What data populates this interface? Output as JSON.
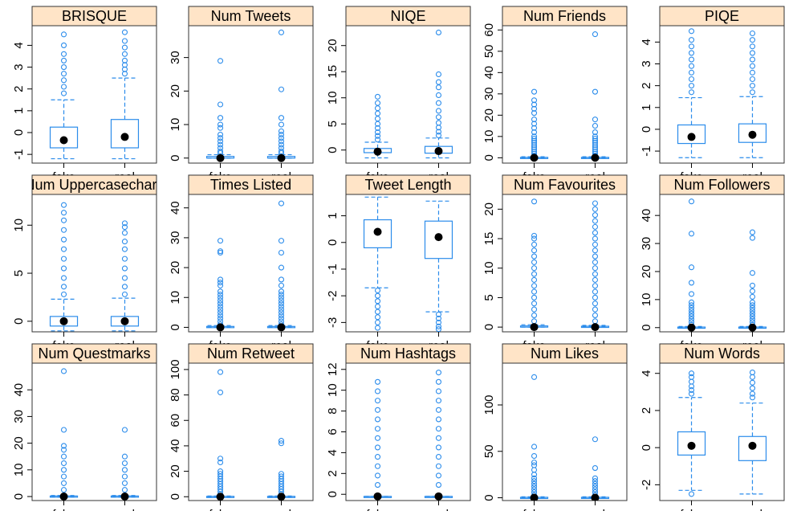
{
  "chart_data": {
    "type": "boxplot",
    "layout": "3x5 trellis",
    "groups": [
      "fake",
      "real"
    ],
    "colors": {
      "box": "#2b8ceb",
      "outlier": "#2b8ceb",
      "median": "#000000",
      "strip": "#ffe4c7",
      "frame": "#333333"
    },
    "panels": [
      {
        "title": "BRISQUE",
        "ylim": [
          -1.4,
          4.9
        ],
        "ticks": [
          -1,
          0,
          1,
          2,
          3,
          4
        ],
        "boxes": [
          {
            "group": "fake",
            "whisker_low": -1.2,
            "q1": -0.7,
            "median": -0.35,
            "q3": 0.25,
            "whisker_high": 1.5,
            "outliers": [
              1.8,
              2.1,
              2.4,
              2.7,
              3.0,
              3.3,
              3.6,
              4.0,
              4.5
            ]
          },
          {
            "group": "real",
            "whisker_low": -1.2,
            "q1": -0.7,
            "median": -0.2,
            "q3": 0.6,
            "whisker_high": 2.5,
            "outliers": [
              2.7,
              2.9,
              3.1,
              3.3,
              3.6,
              3.9,
              4.2,
              4.6
            ]
          }
        ]
      },
      {
        "title": "Num Tweets",
        "ylim": [
          -1.5,
          39.5
        ],
        "ticks": [
          0,
          10,
          20,
          30
        ],
        "boxes": [
          {
            "group": "fake",
            "whisker_low": 0,
            "q1": 0,
            "median": 0,
            "q3": 0.5,
            "whisker_high": 1,
            "outliers": [
              1.5,
              2,
              3,
              4,
              5,
              6,
              7,
              9,
              10,
              12,
              16,
              29
            ]
          },
          {
            "group": "real",
            "whisker_low": 0,
            "q1": 0,
            "median": 0,
            "q3": 0.5,
            "whisker_high": 1,
            "outliers": [
              1.5,
              2,
              3,
              4,
              5,
              6,
              7,
              8,
              10,
              12,
              20.5,
              37.5
            ]
          }
        ]
      },
      {
        "title": "NIQE",
        "ylim": [
          -2.5,
          23.8
        ],
        "ticks": [
          0,
          5,
          10,
          15,
          20
        ],
        "boxes": [
          {
            "group": "fake",
            "whisker_low": -1.5,
            "q1": -0.5,
            "median": -0.3,
            "q3": 0.3,
            "whisker_high": 1.5,
            "outliers": [
              2,
              2.7,
              3.4,
              4.2,
              5,
              6,
              7,
              8,
              9,
              10.2
            ]
          },
          {
            "group": "real",
            "whisker_low": -1.5,
            "q1": -0.6,
            "median": -0.2,
            "q3": 0.7,
            "whisker_high": 2.3,
            "outliers": [
              2.8,
              3.5,
              4.3,
              5.2,
              6.3,
              7.5,
              9,
              10.5,
              12,
              13,
              14.5,
              22.5
            ]
          }
        ]
      },
      {
        "title": "Num Friends",
        "ylim": [
          -2.5,
          62
        ],
        "ticks": [
          0,
          10,
          20,
          30,
          40,
          50,
          60
        ],
        "boxes": [
          {
            "group": "fake",
            "whisker_low": 0,
            "q1": 0,
            "median": 0,
            "q3": 0.2,
            "whisker_high": 0.5,
            "outliers": [
              1,
              2,
              3,
              4,
              5,
              6,
              7,
              8,
              9,
              10,
              12,
              14,
              16,
              18,
              21,
              23,
              25,
              27,
              31
            ]
          },
          {
            "group": "real",
            "whisker_low": 0,
            "q1": 0,
            "median": 0,
            "q3": 0.2,
            "whisker_high": 0.5,
            "outliers": [
              1,
              2,
              3,
              4,
              5,
              6,
              7,
              8,
              9,
              10,
              12,
              15,
              18,
              31,
              58
            ]
          }
        ]
      },
      {
        "title": "PIQE",
        "ylim": [
          -1.55,
          4.75
        ],
        "ticks": [
          -1,
          0,
          1,
          2,
          3,
          4
        ],
        "boxes": [
          {
            "group": "fake",
            "whisker_low": -1.3,
            "q1": -0.65,
            "median": -0.35,
            "q3": 0.2,
            "whisker_high": 1.45,
            "outliers": [
              1.7,
              2.0,
              2.3,
              2.6,
              2.9,
              3.2,
              3.5,
              3.8,
              4.1,
              4.5
            ]
          },
          {
            "group": "real",
            "whisker_low": -1.3,
            "q1": -0.6,
            "median": -0.25,
            "q3": 0.25,
            "whisker_high": 1.5,
            "outliers": [
              1.7,
              2.0,
              2.3,
              2.6,
              2.9,
              3.2,
              3.5,
              3.8,
              4.1,
              4.4
            ]
          }
        ]
      },
      {
        "title": "Num Uppercasechars",
        "ylim": [
          -1.1,
          13.2
        ],
        "ticks": [
          0,
          5,
          10
        ],
        "boxes": [
          {
            "group": "fake",
            "whisker_low": -1,
            "q1": -0.5,
            "median": 0,
            "q3": 0.5,
            "whisker_high": 2.3,
            "outliers": [
              2.8,
              3.6,
              4.5,
              5.5,
              6.5,
              7.5,
              8.5,
              9.5,
              10.5,
              11.3,
              12.1
            ]
          },
          {
            "group": "real",
            "whisker_low": -1,
            "q1": -0.5,
            "median": 0,
            "q3": 0.5,
            "whisker_high": 2.4,
            "outliers": [
              2.8,
              3.6,
              4.5,
              5.5,
              6.5,
              7.5,
              8.3,
              9.2,
              9.8,
              10.2
            ]
          }
        ]
      },
      {
        "title": "Times Listed",
        "ylim": [
          -1.5,
          44.5
        ],
        "ticks": [
          0,
          10,
          20,
          30,
          40
        ],
        "boxes": [
          {
            "group": "fake",
            "whisker_low": 0,
            "q1": 0,
            "median": 0,
            "q3": 0.3,
            "whisker_high": 0.6,
            "outliers": [
              1,
              2,
              3,
              4,
              5,
              6,
              7,
              8,
              9,
              10,
              11,
              12,
              14,
              15,
              16,
              25,
              25.5,
              29
            ]
          },
          {
            "group": "real",
            "whisker_low": 0,
            "q1": 0,
            "median": 0,
            "q3": 0.3,
            "whisker_high": 0.6,
            "outliers": [
              1,
              2,
              3,
              4,
              5,
              6,
              7,
              8,
              9,
              10,
              11,
              12,
              14,
              16,
              20,
              25,
              29,
              41.5
            ]
          }
        ]
      },
      {
        "title": "Tweet Length",
        "ylim": [
          -3.35,
          1.8
        ],
        "ticks": [
          -3,
          -2,
          -1,
          0,
          1
        ],
        "boxes": [
          {
            "group": "fake",
            "whisker_low": -1.7,
            "q1": -0.2,
            "median": 0.4,
            "q3": 0.85,
            "whisker_high": 1.7,
            "outliers": [
              -1.8,
              -2.0,
              -2.2,
              -2.4,
              -2.6,
              -2.8,
              -3.0,
              -3.2
            ]
          },
          {
            "group": "real",
            "whisker_low": -2.6,
            "q1": -0.6,
            "median": 0.2,
            "q3": 0.8,
            "whisker_high": 1.55,
            "outliers": [
              -2.7,
              -2.85,
              -3.0,
              -3.15,
              -3.25
            ]
          }
        ]
      },
      {
        "title": "Num Favourites",
        "ylim": [
          -0.8,
          22.5
        ],
        "ticks": [
          0,
          5,
          10,
          15,
          20
        ],
        "boxes": [
          {
            "group": "fake",
            "whisker_low": 0,
            "q1": 0,
            "median": 0,
            "q3": 0.2,
            "whisker_high": 0.4,
            "outliers": [
              1,
              2,
              3,
              4,
              5,
              6,
              7,
              8,
              9,
              10,
              11,
              12,
              13,
              14,
              15,
              15.5,
              21.3
            ]
          },
          {
            "group": "real",
            "whisker_low": 0,
            "q1": 0,
            "median": 0,
            "q3": 0.15,
            "whisker_high": 0.3,
            "outliers": [
              1,
              2,
              3,
              4,
              5,
              6,
              7,
              8,
              9,
              10,
              11,
              12,
              13,
              14,
              15,
              16,
              17,
              18,
              19,
              20,
              21
            ]
          }
        ]
      },
      {
        "title": "Num Followers",
        "ylim": [
          -1.5,
          47.5
        ],
        "ticks": [
          0,
          10,
          20,
          30,
          40
        ],
        "boxes": [
          {
            "group": "fake",
            "whisker_low": 0,
            "q1": 0,
            "median": 0,
            "q3": 0.2,
            "whisker_high": 0.4,
            "outliers": [
              1,
              2,
              3,
              4,
              5,
              6,
              7,
              8,
              9,
              12,
              16,
              21.5,
              33.5,
              45
            ]
          },
          {
            "group": "real",
            "whisker_low": 0,
            "q1": 0,
            "median": 0,
            "q3": 0.2,
            "whisker_high": 0.4,
            "outliers": [
              1,
              2,
              3,
              4,
              5,
              6,
              7,
              8,
              9,
              11,
              13,
              15,
              19.5,
              32,
              34
            ]
          }
        ]
      },
      {
        "title": "Num Questmarks",
        "ylim": [
          -1.5,
          50
        ],
        "ticks": [
          0,
          10,
          20,
          30,
          40
        ],
        "boxes": [
          {
            "group": "fake",
            "whisker_low": 0,
            "q1": 0,
            "median": 0,
            "q3": 0.2,
            "whisker_high": 0.4,
            "outliers": [
              2.5,
              5,
              7.5,
              10,
              12.5,
              15,
              17.5,
              19,
              25,
              47
            ]
          },
          {
            "group": "real",
            "whisker_low": 0,
            "q1": 0,
            "median": 0,
            "q3": 0.2,
            "whisker_high": 0.4,
            "outliers": [
              2.5,
              5,
              7.5,
              10,
              12.5,
              15,
              25
            ]
          }
        ]
      },
      {
        "title": "Num Retweet",
        "ylim": [
          -3,
          105
        ],
        "ticks": [
          0,
          20,
          40,
          60,
          80,
          100
        ],
        "boxes": [
          {
            "group": "fake",
            "whisker_low": 0,
            "q1": 0,
            "median": 0,
            "q3": 0.3,
            "whisker_high": 0.6,
            "outliers": [
              2,
              4,
              6,
              8,
              10,
              12,
              14,
              16,
              18,
              20,
              27,
              30,
              82,
              98
            ]
          },
          {
            "group": "real",
            "whisker_low": 0,
            "q1": 0,
            "median": 0,
            "q3": 0.3,
            "whisker_high": 0.6,
            "outliers": [
              2,
              4,
              6,
              8,
              10,
              12,
              14,
              16,
              18,
              42,
              44
            ]
          }
        ]
      },
      {
        "title": "Num Hashtags",
        "ylim": [
          -0.6,
          12.6
        ],
        "ticks": [
          0,
          2,
          4,
          6,
          8,
          10,
          12
        ],
        "boxes": [
          {
            "group": "fake",
            "whisker_low": -0.2,
            "q1": -0.2,
            "median": -0.2,
            "q3": -0.2,
            "whisker_high": -0.2,
            "outliers": [
              0.9,
              1.8,
              2.7,
              3.6,
              4.5,
              5.4,
              6.3,
              7.2,
              8.1,
              9.0,
              9.9,
              10.8
            ]
          },
          {
            "group": "real",
            "whisker_low": -0.2,
            "q1": -0.2,
            "median": -0.2,
            "q3": -0.2,
            "whisker_high": -0.2,
            "outliers": [
              0.9,
              1.8,
              2.7,
              3.6,
              4.5,
              5.4,
              6.3,
              7.2,
              8.1,
              9.0,
              9.9,
              10.8,
              11.7
            ]
          }
        ]
      },
      {
        "title": "Num Likes",
        "ylim": [
          -3,
          145
        ],
        "ticks": [
          0,
          50,
          100
        ],
        "boxes": [
          {
            "group": "fake",
            "whisker_low": 0,
            "q1": 0,
            "median": 0,
            "q3": 0.5,
            "whisker_high": 1,
            "outliers": [
              3,
              6,
              9,
              12,
              15,
              18,
              21,
              25,
              30,
              35,
              38,
              45,
              55,
              130
            ]
          },
          {
            "group": "real",
            "whisker_low": 0,
            "q1": 0,
            "median": 0,
            "q3": 0.5,
            "whisker_high": 1,
            "outliers": [
              3,
              6,
              9,
              12,
              15,
              18,
              21,
              32,
              63
            ]
          }
        ]
      },
      {
        "title": "Num Words",
        "ylim": [
          -2.85,
          4.55
        ],
        "ticks": [
          -2,
          0,
          2,
          4
        ],
        "boxes": [
          {
            "group": "fake",
            "whisker_low": -2.3,
            "q1": -0.4,
            "median": 0.1,
            "q3": 0.85,
            "whisker_high": 2.7,
            "outliers": [
              -2.5,
              2.9,
              3.1,
              3.3,
              3.55,
              3.8,
              4.0
            ]
          },
          {
            "group": "real",
            "whisker_low": -2.5,
            "q1": -0.7,
            "median": 0.1,
            "q3": 0.6,
            "whisker_high": 2.4,
            "outliers": [
              2.7,
              2.9,
              3.2,
              3.5,
              3.8,
              4.05
            ]
          }
        ]
      }
    ]
  }
}
